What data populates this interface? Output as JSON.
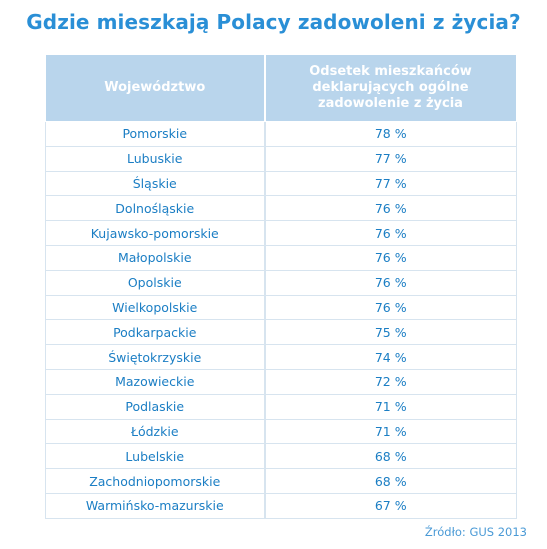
{
  "title": "Gdzie mieszkają Polacy zadowoleni z życia?",
  "table": {
    "headers": {
      "region": "Województwo",
      "value": "Odsetek mieszkańców deklarujących ogólne zadowolenie z życia"
    },
    "rows": [
      {
        "region": "Pomorskie",
        "value": "78 %"
      },
      {
        "region": "Lubuskie",
        "value": "77 %"
      },
      {
        "region": "Śląskie",
        "value": "77 %"
      },
      {
        "region": "Dolnośląskie",
        "value": "76 %"
      },
      {
        "region": "Kujawsko-pomorskie",
        "value": "76 %"
      },
      {
        "region": "Małopolskie",
        "value": "76 %"
      },
      {
        "region": "Opolskie",
        "value": "76 %"
      },
      {
        "region": "Wielkopolskie",
        "value": "76 %"
      },
      {
        "region": "Podkarpackie",
        "value": "75 %"
      },
      {
        "region": "Świętokrzyskie",
        "value": "74 %"
      },
      {
        "region": "Mazowieckie",
        "value": "72 %"
      },
      {
        "region": "Podlaskie",
        "value": "71 %"
      },
      {
        "region": "Łódzkie",
        "value": "71 %"
      },
      {
        "region": "Lubelskie",
        "value": "68 %"
      },
      {
        "region": "Zachodniopomorskie",
        "value": "68 %"
      },
      {
        "region": "Warmińsko-mazurskie",
        "value": "67 %"
      }
    ]
  },
  "source": "Źródło: GUS 2013",
  "colors": {
    "title": "#2a8fd6",
    "header_bg": "#b9d5ec",
    "header_text": "#ffffff",
    "cell_text": "#1b7ec4",
    "grid": "#d7e4ef"
  }
}
